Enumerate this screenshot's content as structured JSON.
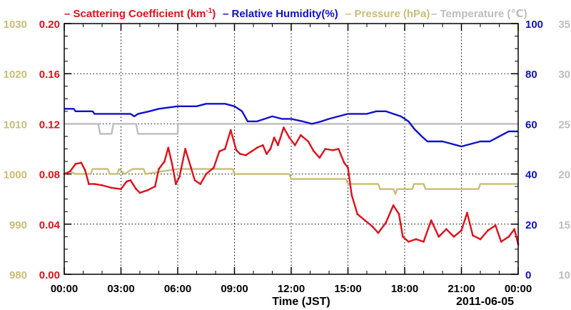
{
  "chart_data": {
    "type": "line",
    "xlabel": "Time (JST)",
    "date_label": "2011-06-05",
    "x_tick_labels": [
      "00:00",
      "03:00",
      "06:00",
      "09:00",
      "12:00",
      "15:00",
      "18:00",
      "21:00",
      "00:00"
    ],
    "x_tick_hours": [
      0,
      3,
      6,
      9,
      12,
      15,
      18,
      21,
      24
    ],
    "xlim_hours": [
      0,
      24
    ],
    "grid": true,
    "legend_placement": "top",
    "axes": {
      "scattering": {
        "ylim": [
          0,
          0.2
        ],
        "ticks": [
          "0.00",
          "0.04",
          "0.08",
          "0.12",
          "0.16",
          "0.20"
        ],
        "tick_values": [
          0,
          0.04,
          0.08,
          0.12,
          0.16,
          0.2
        ],
        "color": "#e0101a",
        "side": "left-inner"
      },
      "pressure": {
        "ylim": [
          980,
          1030
        ],
        "ticks": [
          "980",
          "990",
          "1000",
          "1010",
          "1020",
          "1030"
        ],
        "tick_values": [
          980,
          990,
          1000,
          1010,
          1020,
          1030
        ],
        "color": "#c8bd76",
        "side": "left-outer"
      },
      "humidity": {
        "ylim": [
          0,
          100
        ],
        "ticks": [
          "0",
          "20",
          "40",
          "60",
          "80",
          "100"
        ],
        "tick_values": [
          0,
          20,
          40,
          60,
          80,
          100
        ],
        "color": "#1010cc",
        "side": "right-inner"
      },
      "temperature": {
        "ylim": [
          10,
          35
        ],
        "ticks": [
          "10",
          "15",
          "20",
          "25",
          "30",
          "35"
        ],
        "tick_values": [
          10,
          15,
          20,
          25,
          30,
          35
        ],
        "color": "#bdbdbd",
        "side": "right-outer"
      }
    },
    "series": [
      {
        "name": "Scattering Coefficient",
        "legend_prefix": "– Scattering Coefficient (km",
        "legend_sup": "-1",
        "legend_suffix": ")",
        "axis": "scattering",
        "color": "#e0101a",
        "points": [
          [
            0,
            0.08
          ],
          [
            0.3,
            0.082
          ],
          [
            0.6,
            0.088
          ],
          [
            0.9,
            0.089
          ],
          [
            1.1,
            0.083
          ],
          [
            1.3,
            0.072
          ],
          [
            1.6,
            0.072
          ],
          [
            2.0,
            0.071
          ],
          [
            2.5,
            0.069
          ],
          [
            3.0,
            0.068
          ],
          [
            3.3,
            0.074
          ],
          [
            3.5,
            0.075
          ],
          [
            3.8,
            0.068
          ],
          [
            4.0,
            0.065
          ],
          [
            4.4,
            0.067
          ],
          [
            4.8,
            0.07
          ],
          [
            5.0,
            0.084
          ],
          [
            5.3,
            0.09
          ],
          [
            5.5,
            0.101
          ],
          [
            5.7,
            0.088
          ],
          [
            5.9,
            0.072
          ],
          [
            6.1,
            0.078
          ],
          [
            6.4,
            0.1
          ],
          [
            6.7,
            0.085
          ],
          [
            6.9,
            0.075
          ],
          [
            7.2,
            0.072
          ],
          [
            7.5,
            0.08
          ],
          [
            7.9,
            0.085
          ],
          [
            8.2,
            0.098
          ],
          [
            8.5,
            0.1
          ],
          [
            8.8,
            0.115
          ],
          [
            9.1,
            0.099
          ],
          [
            9.3,
            0.096
          ],
          [
            9.6,
            0.095
          ],
          [
            9.9,
            0.098
          ],
          [
            10.2,
            0.101
          ],
          [
            10.5,
            0.103
          ],
          [
            10.7,
            0.096
          ],
          [
            10.9,
            0.1
          ],
          [
            11.1,
            0.109
          ],
          [
            11.3,
            0.103
          ],
          [
            11.6,
            0.117
          ],
          [
            11.9,
            0.109
          ],
          [
            12.2,
            0.103
          ],
          [
            12.5,
            0.111
          ],
          [
            12.9,
            0.106
          ],
          [
            13.2,
            0.098
          ],
          [
            13.5,
            0.093
          ],
          [
            13.8,
            0.1
          ],
          [
            14.2,
            0.099
          ],
          [
            14.5,
            0.1
          ],
          [
            14.8,
            0.089
          ],
          [
            15.0,
            0.085
          ],
          [
            15.2,
            0.063
          ],
          [
            15.5,
            0.048
          ],
          [
            15.9,
            0.043
          ],
          [
            16.3,
            0.038
          ],
          [
            16.6,
            0.033
          ],
          [
            17.0,
            0.041
          ],
          [
            17.4,
            0.055
          ],
          [
            17.7,
            0.048
          ],
          [
            17.9,
            0.03
          ],
          [
            18.2,
            0.026
          ],
          [
            18.6,
            0.028
          ],
          [
            19.0,
            0.026
          ],
          [
            19.4,
            0.043
          ],
          [
            19.8,
            0.03
          ],
          [
            20.2,
            0.036
          ],
          [
            20.6,
            0.03
          ],
          [
            21.0,
            0.035
          ],
          [
            21.3,
            0.049
          ],
          [
            21.6,
            0.031
          ],
          [
            22.0,
            0.028
          ],
          [
            22.4,
            0.035
          ],
          [
            22.8,
            0.039
          ],
          [
            23.1,
            0.026
          ],
          [
            23.5,
            0.03
          ],
          [
            23.8,
            0.036
          ],
          [
            24.0,
            0.024
          ]
        ]
      },
      {
        "name": "Relative Humidity(%)",
        "legend_text": "– Relative Humidity(%)",
        "axis": "humidity",
        "color": "#1010cc",
        "points": [
          [
            0,
            66
          ],
          [
            0.5,
            66
          ],
          [
            0.6,
            65
          ],
          [
            1.5,
            65
          ],
          [
            1.6,
            64
          ],
          [
            3.5,
            64
          ],
          [
            3.7,
            63
          ],
          [
            3.9,
            64
          ],
          [
            4.5,
            65
          ],
          [
            5.0,
            66
          ],
          [
            6.0,
            67
          ],
          [
            7.0,
            67
          ],
          [
            7.5,
            68
          ],
          [
            8.0,
            68
          ],
          [
            8.5,
            68
          ],
          [
            9.0,
            67
          ],
          [
            9.4,
            65
          ],
          [
            9.7,
            61
          ],
          [
            10.2,
            61
          ],
          [
            10.6,
            62
          ],
          [
            11.0,
            63
          ],
          [
            11.5,
            62
          ],
          [
            12.0,
            62
          ],
          [
            12.6,
            61
          ],
          [
            13.1,
            60
          ],
          [
            13.6,
            61
          ],
          [
            14.0,
            62
          ],
          [
            14.5,
            63
          ],
          [
            15.0,
            64
          ],
          [
            16.0,
            64
          ],
          [
            16.5,
            65
          ],
          [
            17.0,
            65
          ],
          [
            17.4,
            64
          ],
          [
            17.8,
            63
          ],
          [
            18.2,
            61
          ],
          [
            18.5,
            58
          ],
          [
            18.9,
            55
          ],
          [
            19.2,
            53
          ],
          [
            19.6,
            53
          ],
          [
            20.0,
            53
          ],
          [
            20.5,
            52
          ],
          [
            21.0,
            51
          ],
          [
            21.5,
            52
          ],
          [
            22.0,
            53
          ],
          [
            22.5,
            53
          ],
          [
            23.0,
            55
          ],
          [
            23.5,
            57
          ],
          [
            24.0,
            57
          ]
        ]
      },
      {
        "name": "Pressure (hPa)",
        "legend_text": "– Pressure (hPa)",
        "axis": "pressure",
        "color": "#c8bd76",
        "points": [
          [
            0,
            1000
          ],
          [
            0.3,
            1000.5
          ],
          [
            0.6,
            1000
          ],
          [
            1.4,
            1000
          ],
          [
            1.5,
            1001
          ],
          [
            2.3,
            1001
          ],
          [
            2.4,
            1000
          ],
          [
            2.8,
            1000
          ],
          [
            2.9,
            1001
          ],
          [
            3.2,
            1000
          ],
          [
            3.6,
            1001
          ],
          [
            4.2,
            1001
          ],
          [
            4.3,
            1000
          ],
          [
            6.0,
            1001
          ],
          [
            8.9,
            1001
          ],
          [
            9.0,
            1000
          ],
          [
            11.9,
            1000
          ],
          [
            12.0,
            999
          ],
          [
            14.9,
            999
          ],
          [
            15.0,
            998
          ],
          [
            16.6,
            998
          ],
          [
            16.7,
            997
          ],
          [
            17.4,
            997
          ],
          [
            17.5,
            996
          ],
          [
            17.6,
            997
          ],
          [
            18.4,
            997
          ],
          [
            18.5,
            998
          ],
          [
            19.0,
            998
          ],
          [
            19.1,
            997
          ],
          [
            21.9,
            997
          ],
          [
            22.0,
            998
          ],
          [
            24.0,
            998
          ]
        ]
      },
      {
        "name": "Temperature (℃)",
        "legend_text": "– Temperature (℃)",
        "axis": "temperature",
        "color": "#bdbdbd",
        "points": [
          [
            0,
            25
          ],
          [
            1.8,
            25
          ],
          [
            1.9,
            24
          ],
          [
            2.5,
            24
          ],
          [
            2.6,
            25
          ],
          [
            3.8,
            25
          ],
          [
            3.9,
            24
          ],
          [
            6.0,
            24
          ],
          [
            6.01,
            25
          ],
          [
            24,
            25
          ]
        ]
      }
    ]
  }
}
